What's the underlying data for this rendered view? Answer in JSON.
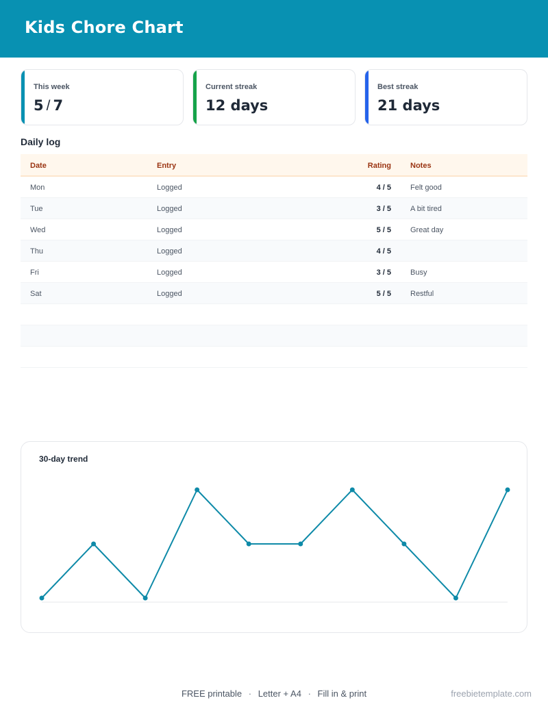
{
  "header": {
    "title": "Kids Chore Chart",
    "color": "#0891b2"
  },
  "stats": [
    {
      "label": "This week",
      "value_left": "5",
      "value_sep": "/",
      "value_right": "7",
      "accent": "#0891b2"
    },
    {
      "label": "Current streak",
      "value": "12 days",
      "accent": "#16a34a"
    },
    {
      "label": "Best streak",
      "value": "21 days",
      "accent": "#2563eb"
    }
  ],
  "daily_log": {
    "title": "Daily log",
    "columns": {
      "date": "Date",
      "entry": "Entry",
      "rating": "Rating",
      "notes": "Notes"
    },
    "rows": [
      {
        "date": "Mon",
        "entry": "Logged",
        "rating": "4 / 5",
        "notes": "Felt good"
      },
      {
        "date": "Tue",
        "entry": "Logged",
        "rating": "3 / 5",
        "notes": "A bit tired"
      },
      {
        "date": "Wed",
        "entry": "Logged",
        "rating": "5 / 5",
        "notes": "Great day"
      },
      {
        "date": "Thu",
        "entry": "Logged",
        "rating": "4 / 5",
        "notes": ""
      },
      {
        "date": "Fri",
        "entry": "Logged",
        "rating": "3 / 5",
        "notes": "Busy"
      },
      {
        "date": "Sat",
        "entry": "Logged",
        "rating": "5 / 5",
        "notes": "Restful"
      }
    ]
  },
  "trend": {
    "title": "30-day trend",
    "line_color": "#0e8aa8"
  },
  "chart_data": {
    "type": "line",
    "title": "30-day trend",
    "xlabel": "",
    "ylabel": "",
    "x": [
      1,
      2,
      3,
      4,
      5,
      6,
      7,
      8,
      9,
      10
    ],
    "values": [
      3,
      4,
      3,
      5,
      4,
      4,
      5,
      4,
      3,
      5
    ],
    "ylim": [
      3,
      5
    ],
    "grid": false
  },
  "footer": {
    "part1": "FREE printable",
    "part2": "Letter + A4",
    "part3": "Fill in & print",
    "dot": "·",
    "site": "freebietemplate.com"
  }
}
